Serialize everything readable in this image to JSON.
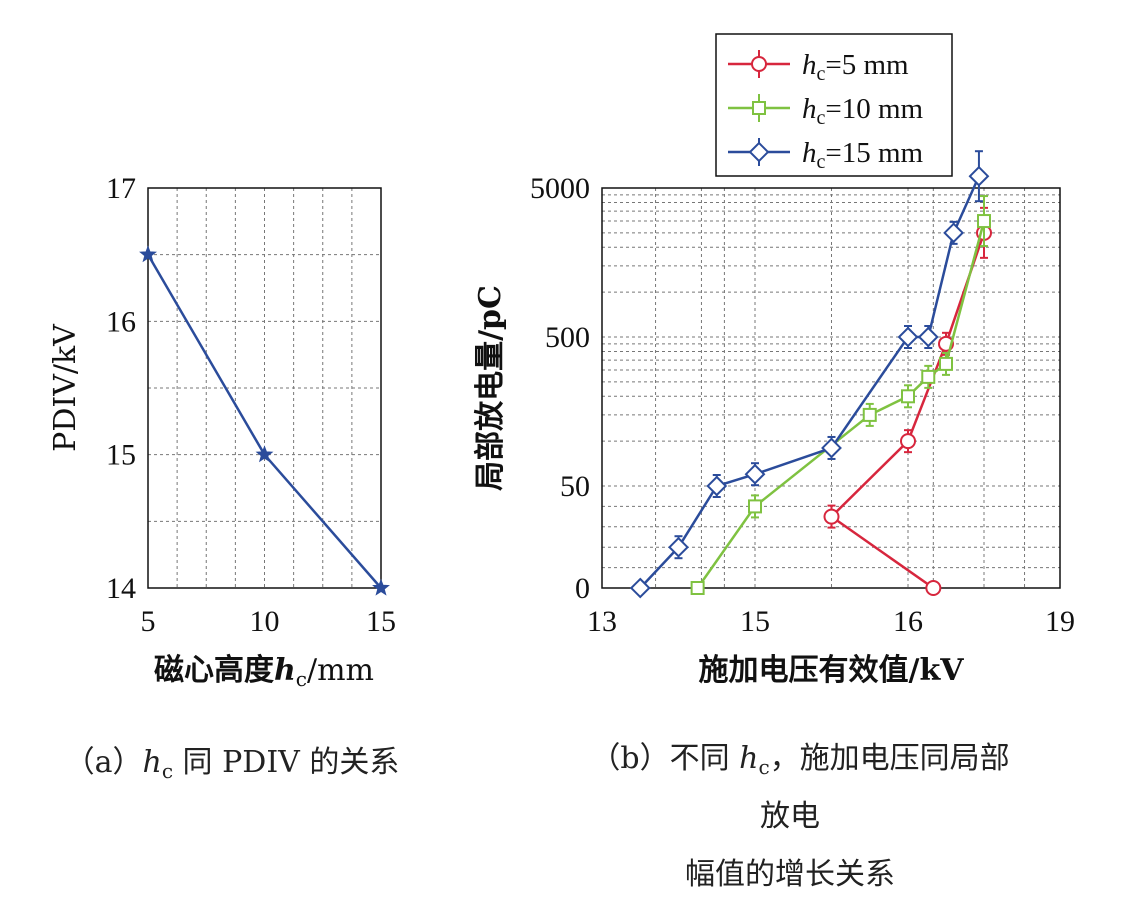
{
  "chart_data": [
    {
      "type": "line",
      "id": "a",
      "xlabel": {
        "main": "磁心高度",
        "var": "h",
        "sub": "c",
        "unit": "/mm"
      },
      "ylabel": "PDIV/kV",
      "xlim": [
        5,
        15
      ],
      "ylim": [
        14,
        17
      ],
      "xticks": [
        "5",
        "10",
        "15"
      ],
      "yticks": [
        "14",
        "15",
        "16",
        "17"
      ],
      "x": [
        5,
        10,
        15
      ],
      "series": [
        {
          "color": "#2b4c9b",
          "marker": "star",
          "values": [
            16.5,
            15.0,
            14.0
          ]
        }
      ],
      "caption": {
        "prefix": "（a）",
        "var": "h",
        "sub": "c",
        "rest": " 同 PDIV 的关系"
      }
    },
    {
      "type": "line",
      "id": "b",
      "xlabel": "施加电压有效值/kV",
      "ylabel": "局部放电量/pC",
      "xticks": [
        "13",
        "15",
        "16",
        "19"
      ],
      "yticks": [
        "0",
        "50",
        "500",
        "5000"
      ],
      "series": [
        {
          "name": "h_c=5 mm",
          "legend": {
            "var": "h",
            "sub": "c",
            "text": "=5 mm"
          },
          "color": "#d7263d",
          "marker": "circle",
          "x": [
            16.5,
            15.5,
            16.0,
            16.75,
            17.5
          ],
          "y": [
            0,
            35,
            100,
            450,
            2500
          ]
        },
        {
          "name": "h_c=10 mm",
          "legend": {
            "var": "h",
            "sub": "c",
            "text": "=10 mm"
          },
          "color": "#7fc241",
          "marker": "square",
          "x": [
            14.25,
            15.0,
            15.75,
            16.0,
            16.4,
            16.75,
            17.5
          ],
          "y": [
            0,
            40,
            150,
            200,
            270,
            330,
            3000
          ]
        },
        {
          "name": "h_c=15 mm",
          "legend": {
            "var": "h",
            "sub": "c",
            "text": "=15 mm"
          },
          "color": "#2b4c9b",
          "marker": "diamond",
          "x": [
            13.5,
            14.0,
            14.5,
            15.0,
            15.5,
            16.0,
            16.4,
            16.9,
            17.4
          ],
          "y": [
            0,
            20,
            50,
            60,
            90,
            500,
            500,
            2500,
            6000
          ]
        }
      ],
      "caption": {
        "prefix": "（b）不同 ",
        "var": "h",
        "sub": "c",
        "rest": "，施加电压同局部",
        "line2": "放电",
        "line3": "幅值的增长关系"
      }
    }
  ]
}
